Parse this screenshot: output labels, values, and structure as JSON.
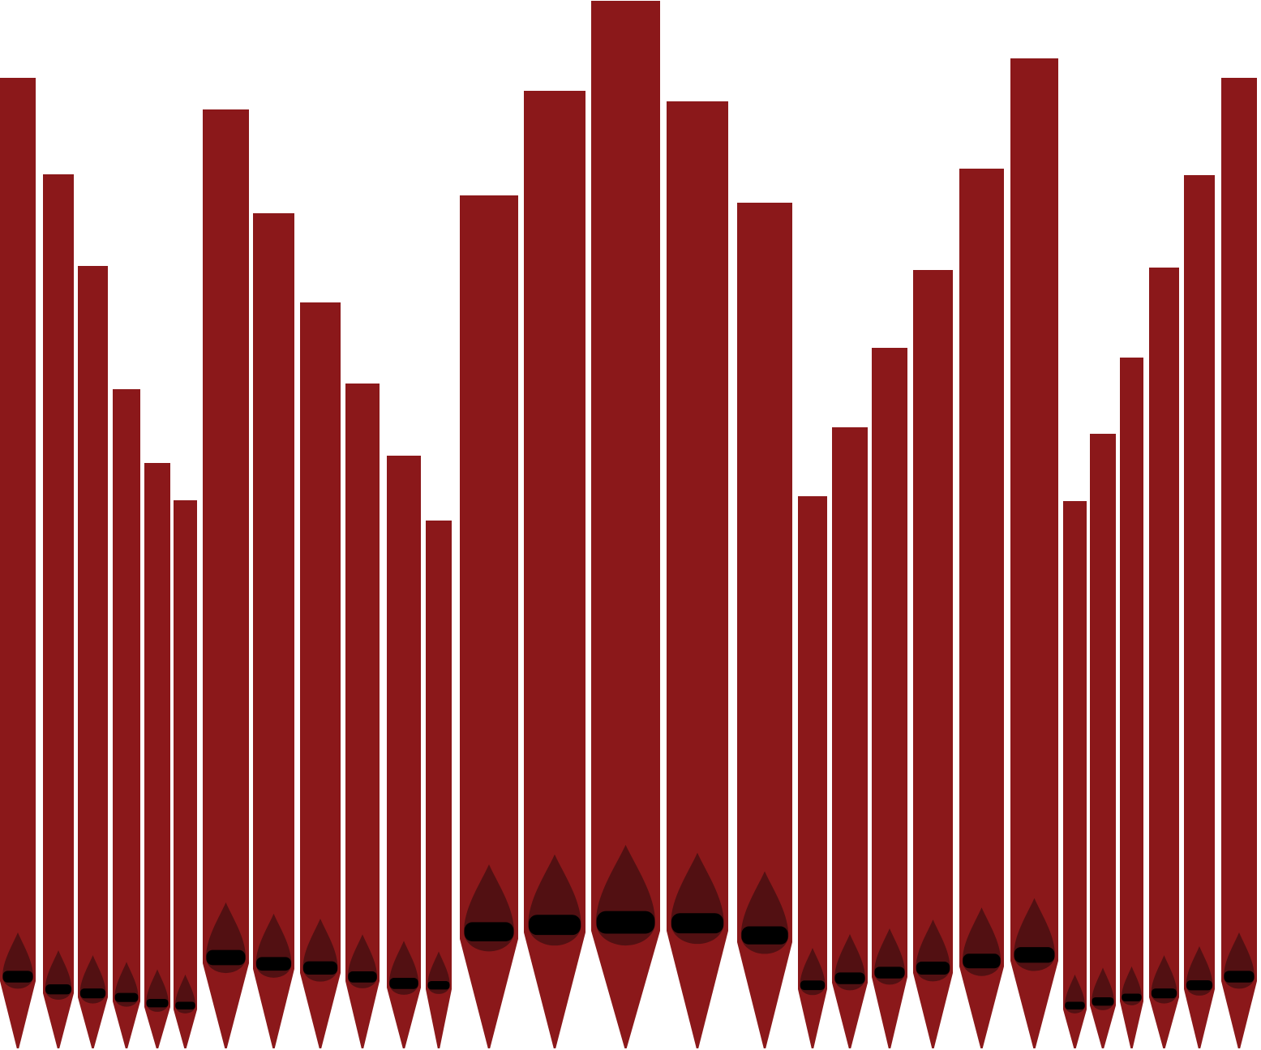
{
  "colors": {
    "background": "#ffffff",
    "pipe": "#8b181a",
    "mouth": "#521012",
    "lip": "#000000"
  },
  "pipe_groups": [
    {
      "group": "left-flat",
      "pipes": 6
    },
    {
      "group": "left-inner-flat",
      "pipes": 6
    },
    {
      "group": "center-tower",
      "pipes": 5
    },
    {
      "group": "right-inner-flat",
      "pipes": 6
    },
    {
      "group": "right-flat",
      "pipes": 6
    }
  ],
  "pipe_count": 29
}
